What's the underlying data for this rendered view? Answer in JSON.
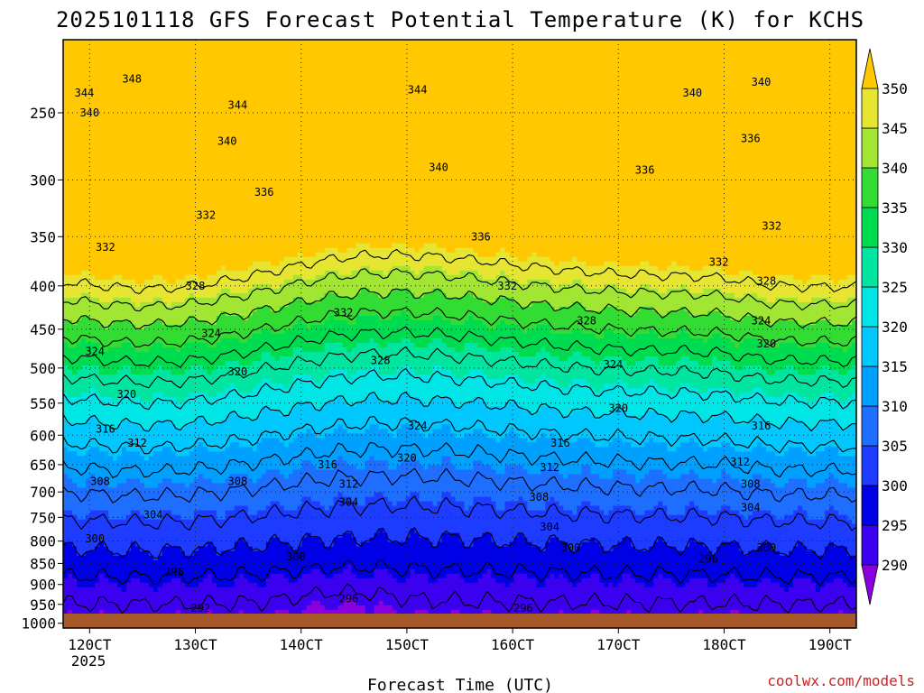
{
  "chart_data": {
    "type": "heatmap",
    "title": "2025101118 GFS Forecast Potential Temperature (K) for KCHS",
    "xlabel": "Forecast Time (UTC)",
    "ylabel": "",
    "x_ticks": [
      "120CT",
      "130CT",
      "140CT",
      "150CT",
      "160CT",
      "170CT",
      "180CT",
      "190CT"
    ],
    "x_year_label": "2025",
    "y_ticks": [
      250,
      300,
      350,
      400,
      450,
      500,
      550,
      600,
      650,
      700,
      750,
      800,
      850,
      900,
      950,
      1000
    ],
    "y_range_hpa": [
      1013,
      205
    ],
    "y_scale": "log",
    "x_range_days": [
      11.75,
      19.25
    ],
    "grid": true,
    "colorbar": {
      "levels": [
        290,
        295,
        300,
        305,
        310,
        315,
        320,
        325,
        330,
        335,
        340,
        345,
        350
      ],
      "colors": [
        "#8a00e0",
        "#3c00f0",
        "#0000e6",
        "#1e3cff",
        "#1e6eff",
        "#00a0ff",
        "#00c8ff",
        "#00e6e6",
        "#00e6a0",
        "#00dc50",
        "#32dc32",
        "#a0e632",
        "#e6e632",
        "#ffc800"
      ]
    },
    "contour_levels": [
      292,
      296,
      300,
      304,
      308,
      312,
      316,
      320,
      324,
      328,
      332,
      336,
      340,
      344,
      348
    ],
    "contour_labels": [
      {
        "t": 12.4,
        "p": 228,
        "v": "348"
      },
      {
        "t": 11.95,
        "p": 237,
        "v": "344"
      },
      {
        "t": 12.0,
        "p": 250,
        "v": "340"
      },
      {
        "t": 13.4,
        "p": 245,
        "v": "344"
      },
      {
        "t": 15.1,
        "p": 235,
        "v": "344"
      },
      {
        "t": 13.3,
        "p": 270,
        "v": "340"
      },
      {
        "t": 15.3,
        "p": 290,
        "v": "340"
      },
      {
        "t": 17.7,
        "p": 237,
        "v": "340"
      },
      {
        "t": 18.35,
        "p": 230,
        "v": "340"
      },
      {
        "t": 18.25,
        "p": 268,
        "v": "336"
      },
      {
        "t": 17.25,
        "p": 292,
        "v": "336"
      },
      {
        "t": 13.65,
        "p": 310,
        "v": "336"
      },
      {
        "t": 15.7,
        "p": 350,
        "v": "336"
      },
      {
        "t": 12.15,
        "p": 360,
        "v": "332"
      },
      {
        "t": 13.1,
        "p": 330,
        "v": "332"
      },
      {
        "t": 14.4,
        "p": 430,
        "v": "332"
      },
      {
        "t": 15.95,
        "p": 400,
        "v": "332"
      },
      {
        "t": 17.95,
        "p": 375,
        "v": "332"
      },
      {
        "t": 18.45,
        "p": 340,
        "v": "332"
      },
      {
        "t": 13.0,
        "p": 400,
        "v": "328"
      },
      {
        "t": 14.75,
        "p": 490,
        "v": "328"
      },
      {
        "t": 16.7,
        "p": 440,
        "v": "328"
      },
      {
        "t": 18.4,
        "p": 395,
        "v": "328"
      },
      {
        "t": 12.05,
        "p": 478,
        "v": "324"
      },
      {
        "t": 13.15,
        "p": 455,
        "v": "324"
      },
      {
        "t": 15.1,
        "p": 585,
        "v": "324"
      },
      {
        "t": 16.95,
        "p": 495,
        "v": "324"
      },
      {
        "t": 18.35,
        "p": 440,
        "v": "324"
      },
      {
        "t": 18.4,
        "p": 468,
        "v": "320"
      },
      {
        "t": 12.35,
        "p": 537,
        "v": "320"
      },
      {
        "t": 13.4,
        "p": 505,
        "v": "320"
      },
      {
        "t": 15.0,
        "p": 638,
        "v": "320"
      },
      {
        "t": 17.0,
        "p": 558,
        "v": "320"
      },
      {
        "t": 12.15,
        "p": 590,
        "v": "316"
      },
      {
        "t": 14.25,
        "p": 650,
        "v": "316"
      },
      {
        "t": 16.45,
        "p": 613,
        "v": "316"
      },
      {
        "t": 18.35,
        "p": 585,
        "v": "316"
      },
      {
        "t": 12.45,
        "p": 613,
        "v": "312"
      },
      {
        "t": 14.45,
        "p": 685,
        "v": "312"
      },
      {
        "t": 16.35,
        "p": 655,
        "v": "312"
      },
      {
        "t": 18.15,
        "p": 645,
        "v": "312"
      },
      {
        "t": 12.1,
        "p": 680,
        "v": "308"
      },
      {
        "t": 13.4,
        "p": 680,
        "v": "308"
      },
      {
        "t": 16.25,
        "p": 710,
        "v": "308"
      },
      {
        "t": 18.25,
        "p": 685,
        "v": "308"
      },
      {
        "t": 12.6,
        "p": 745,
        "v": "304"
      },
      {
        "t": 14.45,
        "p": 720,
        "v": "304"
      },
      {
        "t": 16.35,
        "p": 770,
        "v": "304"
      },
      {
        "t": 18.25,
        "p": 730,
        "v": "304"
      },
      {
        "t": 12.05,
        "p": 795,
        "v": "300"
      },
      {
        "t": 13.95,
        "p": 835,
        "v": "300"
      },
      {
        "t": 16.55,
        "p": 815,
        "v": "300"
      },
      {
        "t": 18.4,
        "p": 815,
        "v": "300"
      },
      {
        "t": 12.8,
        "p": 870,
        "v": "296"
      },
      {
        "t": 14.45,
        "p": 935,
        "v": "296"
      },
      {
        "t": 16.1,
        "p": 960,
        "v": "296"
      },
      {
        "t": 17.85,
        "p": 840,
        "v": "296"
      },
      {
        "t": 13.05,
        "p": 960,
        "v": "292"
      }
    ],
    "credit": "coolwx.com/models"
  }
}
